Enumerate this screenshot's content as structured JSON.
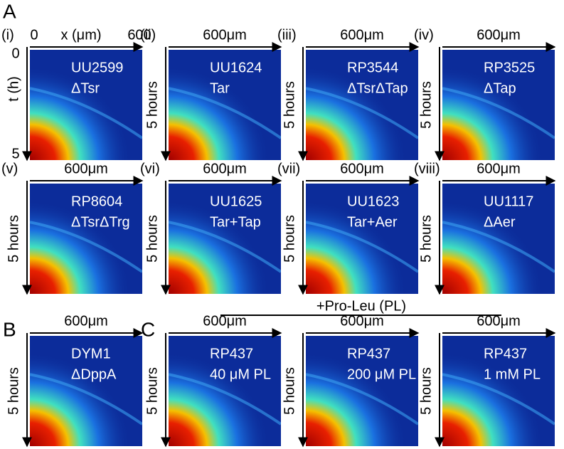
{
  "panels": [
    {
      "label": "A",
      "tiles": [
        {
          "index": "(i)",
          "strain": "UU2599",
          "genotype": "ΔTsr",
          "x_axis": {
            "start": "0",
            "label": "x (μm)",
            "end": "600"
          },
          "y_axis": {
            "label": "t (h)",
            "start": "0",
            "end": "5"
          }
        },
        {
          "index": "(ii)",
          "strain": "UU1624",
          "genotype": "Tar",
          "x_label": "600μm",
          "y_label": "5 hours"
        },
        {
          "index": "(iii)",
          "strain": "RP3544",
          "genotype": "ΔTsrΔTap",
          "x_label": "600μm",
          "y_label": "5 hours"
        },
        {
          "index": "(iv)",
          "strain": "RP3525",
          "genotype": "ΔTap",
          "x_label": "600μm",
          "y_label": "5 hours"
        },
        {
          "index": "(v)",
          "strain": "RP8604",
          "genotype": "ΔTsrΔTrg",
          "x_label": "600μm",
          "y_label": "5 hours"
        },
        {
          "index": "(vi)",
          "strain": "UU1625",
          "genotype": "Tar+Tap",
          "x_label": "600μm",
          "y_label": "5 hours"
        },
        {
          "index": "(vii)",
          "strain": "UU1623",
          "genotype": "Tar+Aer",
          "x_label": "600μm",
          "y_label": "5 hours"
        },
        {
          "index": "(viii)",
          "strain": "UU1117",
          "genotype": "ΔAer",
          "x_label": "600μm",
          "y_label": "5 hours"
        }
      ]
    },
    {
      "label": "B",
      "tiles": [
        {
          "strain": "DYM1",
          "genotype": "ΔDppA",
          "x_label": "600μm",
          "y_label": "5 hours"
        }
      ]
    },
    {
      "label": "C",
      "header": "+Pro-Leu (PL)",
      "tiles": [
        {
          "strain": "RP437",
          "genotype": "40 μM PL",
          "x_label": "600μm",
          "y_label": "5 hours"
        },
        {
          "strain": "RP437",
          "genotype": "200 μM PL",
          "x_label": "600μm",
          "y_label": "5 hours"
        },
        {
          "strain": "RP437",
          "genotype": "1 mM PL",
          "x_label": "600μm",
          "y_label": "5 hours"
        }
      ]
    }
  ]
}
